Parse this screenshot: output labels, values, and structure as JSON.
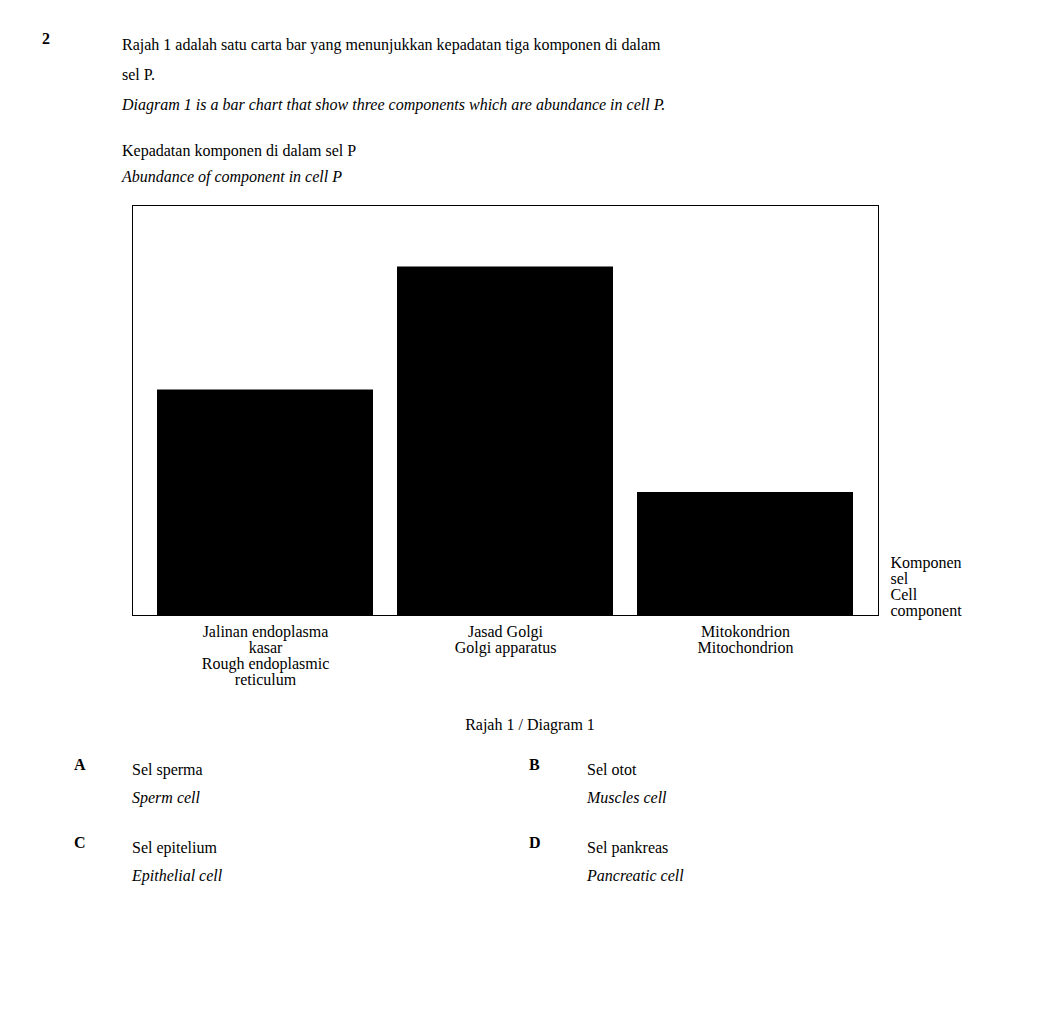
{
  "chart_data": {
    "type": "bar",
    "title": [
      "Rajah 1 adalah satu carta bar yang menunjukkan kepadatan tiga komponen di dalam",
      "sel P."
    ],
    "subtitle": "Diagram 1 is a bar chart that show three components which are abundance in cell P.",
    "ylabel": [
      "Kepadatan komponen di dalam sel P",
      "Abundance of component in cell P"
    ],
    "xlabel": [
      "Komponen",
      "sel",
      "Cell",
      "component"
    ],
    "categories": [
      "Jalinan endoplasma\nkasar\nRough endoplasmic\nreticulum",
      "Jasad Golgi\nGolgi apparatus",
      "Mitokondrion\nMitochondrion"
    ],
    "values": [
      55,
      85,
      30
    ],
    "color": "#000000",
    "ylim": [
      0,
      100
    ],
    "tick_labels": "x",
    "grid": false,
    "caption": "Rajah 1 / Diagram 1",
    "annotations": [
      [
        "2"
      ],
      [
        "A",
        "Sel sperma",
        "Sperm cell"
      ],
      [
        "B",
        "Sel otot",
        "Muscles cell"
      ],
      [
        "C",
        "Sel epitelium",
        "Epithelial cell"
      ],
      [
        "D",
        "Sel pankreas",
        "Pancreatic cell"
      ]
    ]
  }
}
